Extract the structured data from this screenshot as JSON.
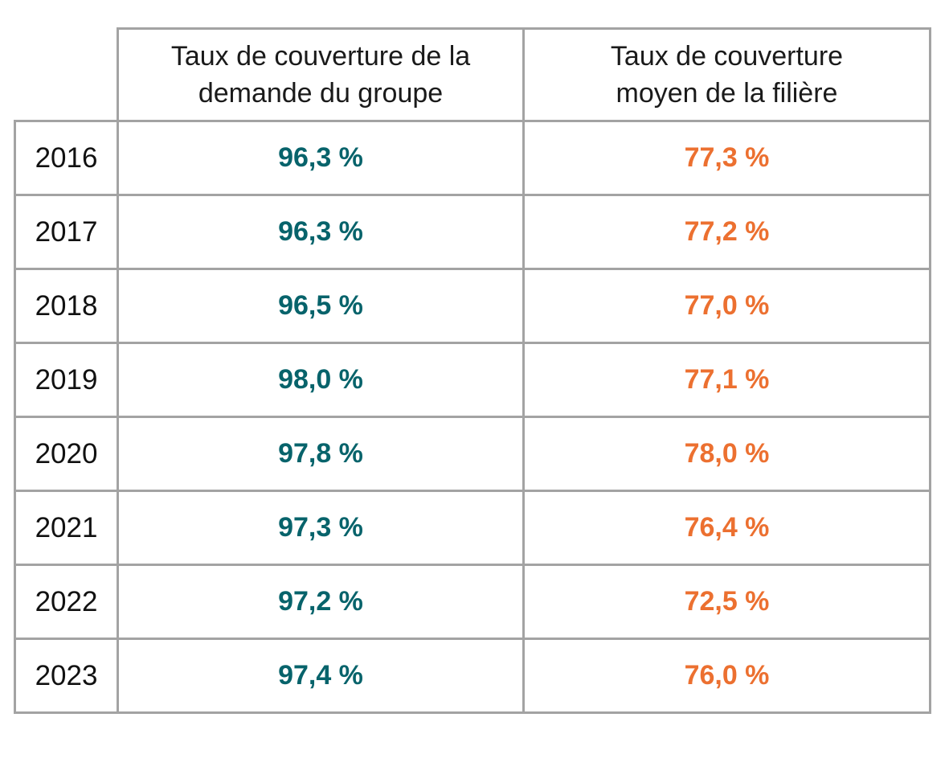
{
  "table": {
    "headers": {
      "year": "",
      "group": [
        "Taux de couverture de la",
        "demande du groupe"
      ],
      "sector": [
        "Taux de couverture",
        "moyen de la filière"
      ]
    },
    "colors": {
      "group_value": "#07636b",
      "sector_value": "#ec7030",
      "border": "#a3a3a3"
    },
    "rows": [
      {
        "year": "2016",
        "group": "96,3 %",
        "sector": "77,3 %"
      },
      {
        "year": "2017",
        "group": "96,3 %",
        "sector": "77,2 %"
      },
      {
        "year": "2018",
        "group": "96,5 %",
        "sector": "77,0 %"
      },
      {
        "year": "2019",
        "group": "98,0 %",
        "sector": "77,1 %"
      },
      {
        "year": "2020",
        "group": "97,8 %",
        "sector": "78,0 %"
      },
      {
        "year": "2021",
        "group": "97,3 %",
        "sector": "76,4 %"
      },
      {
        "year": "2022",
        "group": "97,2 %",
        "sector": "72,5 %"
      },
      {
        "year": "2023",
        "group": "97,4 %",
        "sector": "76,0 %"
      }
    ]
  }
}
